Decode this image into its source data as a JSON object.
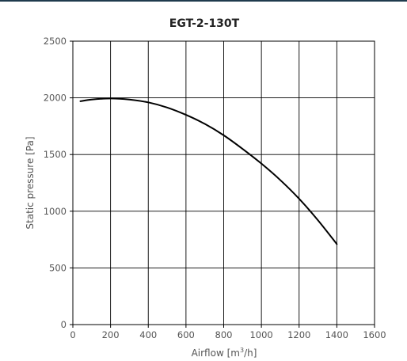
{
  "chart_data": {
    "type": "line",
    "title": "EGT-2-130T",
    "xlabel_prefix": "Airflow [m",
    "xlabel_sup": "3",
    "xlabel_suffix": "/h]",
    "ylabel": "Static pressure [Pa]",
    "xlim": [
      0,
      1600
    ],
    "ylim": [
      0,
      2500
    ],
    "x_ticks": [
      0,
      200,
      400,
      600,
      800,
      1000,
      1200,
      1400,
      1600
    ],
    "y_ticks": [
      0,
      500,
      1000,
      1500,
      2000,
      2500
    ],
    "grid": true,
    "series": [
      {
        "x": [
          40,
          100,
          200,
          300,
          400,
          500,
          600,
          700,
          800,
          900,
          1000,
          1100,
          1200,
          1300,
          1400
        ],
        "y": [
          1970,
          1985,
          1995,
          1985,
          1960,
          1915,
          1850,
          1770,
          1670,
          1550,
          1420,
          1275,
          1110,
          920,
          710
        ]
      }
    ]
  }
}
